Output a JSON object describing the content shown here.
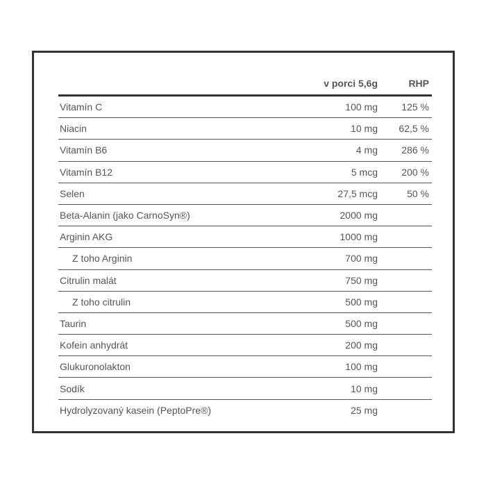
{
  "header": {
    "col_name": "",
    "col_value": "v porci 5,6g",
    "col_rhp": "RHP"
  },
  "rows": [
    {
      "name": "Vitamín C",
      "value": "100 mg",
      "rhp": "125 %"
    },
    {
      "name": "Niacin",
      "value": "10 mg",
      "rhp": "62,5 %"
    },
    {
      "name": "Vitamín B6",
      "value": "4 mg",
      "rhp": "286 %"
    },
    {
      "name": "Vitamín B12",
      "value": "5 mcg",
      "rhp": "200 %"
    },
    {
      "name": "Selen",
      "value": "27,5 mcg",
      "rhp": "50 %"
    },
    {
      "name": "Beta-Alanin (jako CarnoSyn®)",
      "value": "2000 mg",
      "rhp": ""
    },
    {
      "name": "Arginin AKG",
      "value": "1000 mg",
      "rhp": ""
    },
    {
      "name": "Z toho Arginin",
      "value": "700 mg",
      "rhp": "",
      "sub": true
    },
    {
      "name": "Citrulin malát",
      "value": "750 mg",
      "rhp": ""
    },
    {
      "name": "Z toho citrulin",
      "value": "500 mg",
      "rhp": "",
      "sub": true
    },
    {
      "name": "Taurin",
      "value": "500 mg",
      "rhp": ""
    },
    {
      "name": "Kofein anhydrát",
      "value": "200 mg",
      "rhp": ""
    },
    {
      "name": "Glukuronolakton",
      "value": "100 mg",
      "rhp": ""
    },
    {
      "name": "Sodík",
      "value": "10 mg",
      "rhp": ""
    },
    {
      "name": "Hydrolyzovaný kasein (PeptoPre®)",
      "value": "25 mg",
      "rhp": ""
    }
  ]
}
